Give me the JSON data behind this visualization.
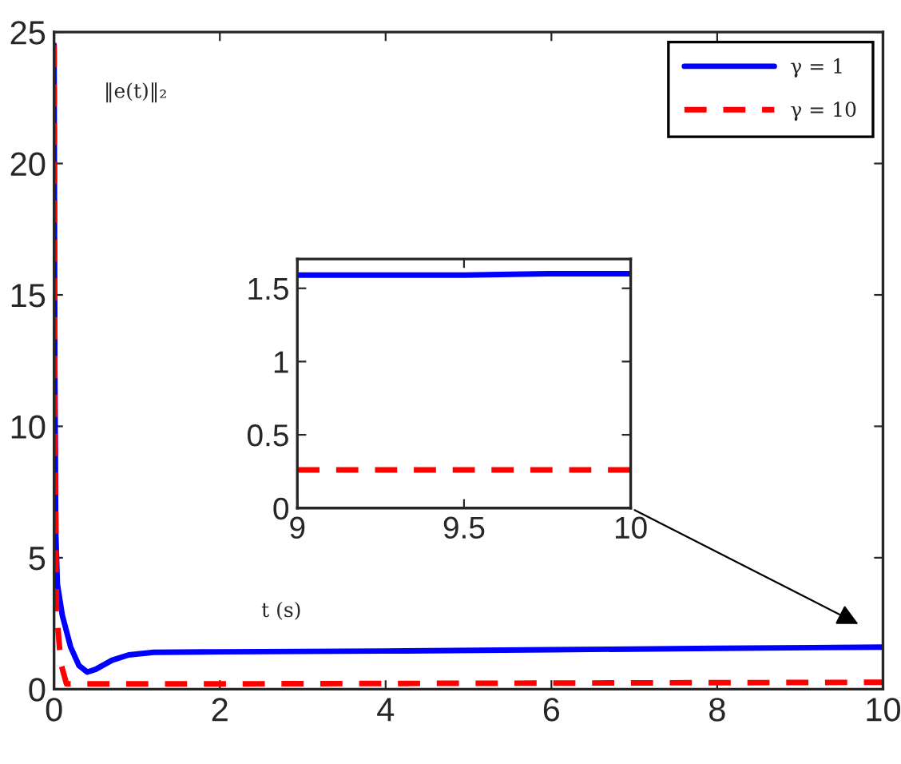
{
  "chart_data": [
    {
      "type": "line",
      "xlabel": "t (s)",
      "ylabel": "‖e(t)‖₂",
      "xlim": [
        0,
        10
      ],
      "ylim": [
        0,
        25
      ],
      "xticks": [
        0,
        2,
        4,
        6,
        8,
        10
      ],
      "yticks": [
        0,
        5,
        10,
        15,
        20,
        25
      ],
      "grid": false,
      "legend": "top right",
      "series": [
        {
          "name": "γ = 1",
          "color": "#0000ff",
          "line_style": "solid",
          "x": [
            0,
            0.01,
            0.02,
            0.04,
            0.1,
            0.2,
            0.3,
            0.4,
            0.5,
            0.7,
            0.9,
            1.2,
            2,
            4,
            6,
            8,
            10
          ],
          "values": [
            24.5,
            12,
            6,
            4,
            2.8,
            1.6,
            0.9,
            0.65,
            0.75,
            1.1,
            1.3,
            1.4,
            1.42,
            1.45,
            1.5,
            1.55,
            1.6
          ]
        },
        {
          "name": "γ = 10",
          "color": "#ff0000",
          "line_style": "dashed",
          "x": [
            0,
            0.01,
            0.03,
            0.08,
            0.15,
            2,
            10
          ],
          "values": [
            24.5,
            10,
            3,
            1,
            0.2,
            0.2,
            0.26
          ]
        }
      ]
    },
    {
      "type": "line",
      "xlim": [
        9,
        10
      ],
      "ylim": [
        0,
        1.7
      ],
      "xticks": [
        9,
        9.5,
        10
      ],
      "yticks": [
        0,
        0.5,
        1,
        1.5
      ],
      "grid": false,
      "series": [
        {
          "color": "#0000ff",
          "line_style": "solid",
          "x": [
            9,
            9.25,
            9.5,
            9.75,
            10
          ],
          "values": [
            1.59,
            1.59,
            1.59,
            1.6,
            1.6
          ]
        },
        {
          "color": "#ff0000",
          "line_style": "dashed",
          "x": [
            9,
            9.5,
            10
          ],
          "values": [
            0.26,
            0.26,
            0.26
          ]
        }
      ]
    }
  ]
}
